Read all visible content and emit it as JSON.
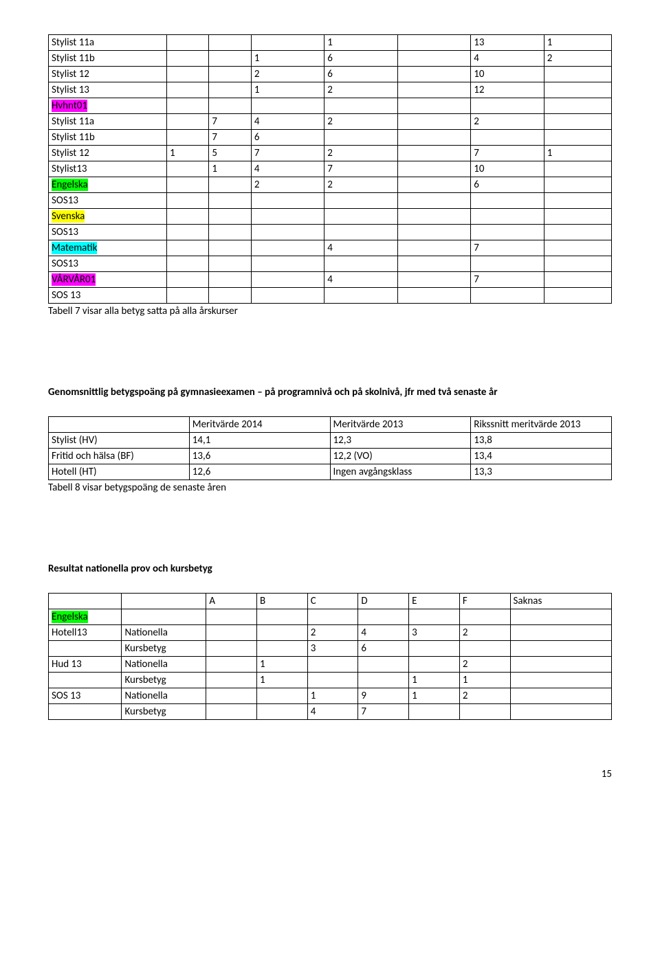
{
  "table1": {
    "cols": 8,
    "col_widths": [
      "21%",
      "7.5%",
      "7.5%",
      "13%",
      "13%",
      "13%",
      "13%",
      "12%"
    ],
    "rows": [
      {
        "cells": [
          "Stylist 11a",
          "",
          "",
          "",
          "1",
          "",
          "13",
          "1"
        ]
      },
      {
        "cells": [
          "Stylist 11b",
          "",
          "",
          "1",
          "6",
          "",
          "4",
          "2"
        ]
      },
      {
        "cells": [
          "Stylist 12",
          "",
          "",
          "2",
          "6",
          "",
          "10",
          ""
        ]
      },
      {
        "cells": [
          "Stylist 13",
          "",
          "",
          "1",
          "2",
          "",
          "12",
          ""
        ]
      },
      {
        "cells": [
          "Hvhnt01",
          "",
          "",
          "",
          "",
          "",
          "",
          ""
        ],
        "hl": [
          0
        ],
        "hlclass": "hl-magenta"
      },
      {
        "cells": [
          "Stylist 11a",
          "",
          "7",
          "4",
          "2",
          "",
          "2",
          ""
        ]
      },
      {
        "cells": [
          "Stylist 11b",
          "",
          "7",
          "6",
          "",
          "",
          "",
          ""
        ]
      },
      {
        "cells": [
          "Stylist 12",
          "1",
          "5",
          "7",
          "2",
          "",
          "7",
          "1"
        ]
      },
      {
        "cells": [
          "Stylist13",
          "",
          "1",
          "4",
          "7",
          "",
          "10",
          ""
        ]
      },
      {
        "cells": [
          "Engelska",
          "",
          "",
          "2",
          "2",
          "",
          "6",
          ""
        ],
        "hl": [
          0
        ],
        "hlclass": "hl-green"
      },
      {
        "cells": [
          " SOS13",
          "",
          "",
          "",
          "",
          "",
          "",
          ""
        ]
      },
      {
        "cells": [
          "Svenska",
          "",
          "",
          "",
          "",
          "",
          "",
          ""
        ],
        "hl": [
          0
        ],
        "hlclass": "hl-yellow"
      },
      {
        "cells": [
          " SOS13",
          "",
          "",
          "",
          "",
          "",
          "",
          ""
        ]
      },
      {
        "cells": [
          "Matematik",
          "",
          "",
          "",
          "4",
          "",
          "7",
          ""
        ],
        "hl": [
          0
        ],
        "hlclass": "hl-cyan"
      },
      {
        "cells": [
          "SOS13",
          "",
          "",
          "",
          "",
          "",
          "",
          ""
        ]
      },
      {
        "cells": [
          "VÅRVÅR01",
          "",
          "",
          "",
          "4",
          "",
          "7",
          ""
        ],
        "hl": [
          0
        ],
        "hlclass": "hl-magenta"
      },
      {
        "cells": [
          "SOS 13",
          "",
          "",
          "",
          "",
          "",
          "",
          ""
        ]
      }
    ],
    "caption": "Tabell 7 visar alla betyg satta på alla årskurser"
  },
  "section1_title": "Genomsnittlig betygspoäng på gymnasieexamen – på programnivå och på skolnivå, jfr med två senaste år",
  "table2": {
    "col_widths": [
      "25%",
      "25%",
      "25%",
      "25%"
    ],
    "rows": [
      [
        "",
        "Meritvärde 2014",
        "Meritvärde 2013",
        "Rikssnitt meritvärde 2013"
      ],
      [
        "Stylist (HV)",
        "14,1",
        "12,3",
        "13,8"
      ],
      [
        "Fritid och hälsa (BF)",
        "13,6",
        "12,2 (VO)",
        "13,4"
      ],
      [
        "Hotell (HT)",
        "12,6",
        "Ingen avgångsklass",
        "13,3"
      ]
    ],
    "caption": "Tabell 8 visar betygspoäng de senaste åren"
  },
  "section2_title": "Resultat nationella prov och kursbetyg",
  "table3": {
    "cols": 9,
    "col_widths": [
      "13%",
      "15%",
      "9%",
      "9%",
      "9%",
      "9%",
      "9%",
      "9%",
      "18%"
    ],
    "rows": [
      {
        "cells": [
          "",
          "",
          "A",
          "B",
          "C",
          "D",
          "E",
          "F",
          "Saknas"
        ]
      },
      {
        "cells": [
          "Engelska",
          "",
          "",
          "",
          "",
          "",
          "",
          "",
          ""
        ],
        "hl": [
          0
        ],
        "hlclass": "hl-green"
      },
      {
        "cells": [
          "Hotell13",
          "Nationella",
          "",
          "",
          "2",
          "4",
          "3",
          "2",
          ""
        ]
      },
      {
        "cells": [
          "",
          "Kursbetyg",
          "",
          "",
          "3",
          "6",
          "",
          "",
          ""
        ]
      },
      {
        "cells": [
          "Hud 13",
          "Nationella",
          "",
          "1",
          "",
          "",
          "",
          "2",
          ""
        ]
      },
      {
        "cells": [
          "",
          "Kursbetyg",
          "",
          "1",
          "",
          "",
          "1",
          "1",
          ""
        ]
      },
      {
        "cells": [
          "SOS 13",
          "Nationella",
          "",
          "",
          "1",
          "9",
          "1",
          "2",
          ""
        ]
      },
      {
        "cells": [
          "",
          "Kursbetyg",
          "",
          "",
          "4",
          "7",
          "",
          "",
          ""
        ]
      }
    ]
  },
  "page_number": "15"
}
